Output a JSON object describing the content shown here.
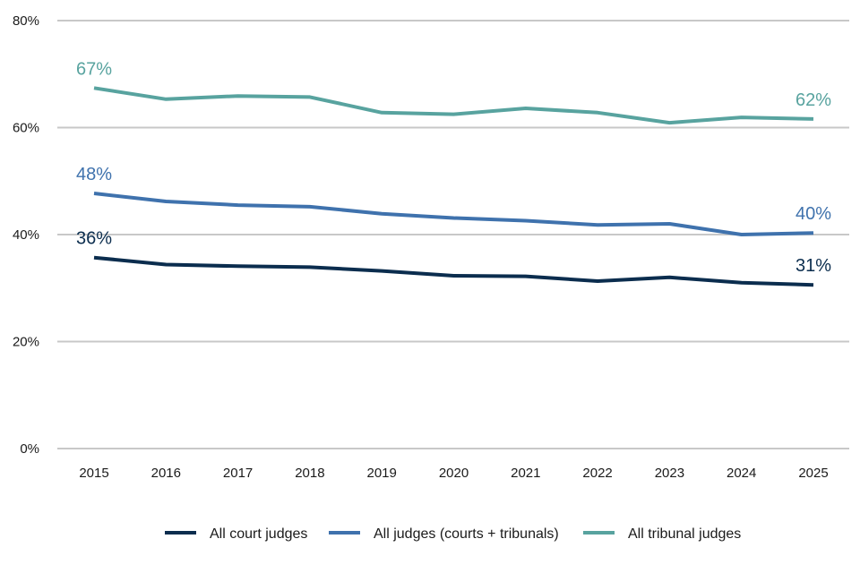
{
  "chart_data": {
    "type": "line",
    "title": "",
    "xlabel": "",
    "ylabel": "",
    "x": [
      "2015",
      "2016",
      "2017",
      "2018",
      "2019",
      "2020",
      "2021",
      "2022",
      "2023",
      "2024",
      "2025"
    ],
    "ylim": [
      0,
      80
    ],
    "y_ticks": [
      0,
      20,
      40,
      60,
      80
    ],
    "y_tick_labels": [
      "0%",
      "20%",
      "40%",
      "60%",
      "80%"
    ],
    "grid": "horizontal",
    "legend_position": "bottom",
    "series": [
      {
        "name": "All court judges",
        "color": "#0b2d4e",
        "values": [
          35.7,
          34.4,
          34.1,
          33.9,
          33.2,
          32.3,
          32.2,
          31.3,
          32.0,
          31.0,
          30.6
        ],
        "labels": [
          {
            "index": 0,
            "text": "36%"
          },
          {
            "index": 10,
            "text": "31%"
          }
        ]
      },
      {
        "name": "All judges (courts + tribunals)",
        "color": "#3f72ad",
        "values": [
          47.7,
          46.2,
          45.5,
          45.2,
          43.9,
          43.1,
          42.6,
          41.8,
          42.0,
          40.0,
          40.3
        ],
        "labels": [
          {
            "index": 0,
            "text": "48%"
          },
          {
            "index": 10,
            "text": "40%"
          }
        ]
      },
      {
        "name": "All tribunal judges",
        "color": "#58a39f",
        "values": [
          67.4,
          65.3,
          65.9,
          65.7,
          62.8,
          62.5,
          63.6,
          62.8,
          60.9,
          61.9,
          61.6
        ],
        "labels": [
          {
            "index": 0,
            "text": "67%"
          },
          {
            "index": 10,
            "text": "62%"
          }
        ]
      }
    ]
  }
}
